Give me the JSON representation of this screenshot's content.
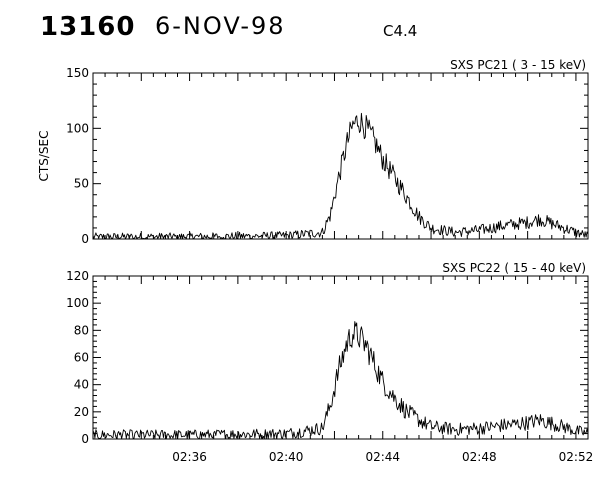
{
  "header": {
    "event_id": "13160",
    "date": "6-NOV-98",
    "goes_class": "C4.4"
  },
  "chart_data": [
    {
      "type": "line",
      "title": "SXS PC21  (  3 - 15 keV)",
      "ylabel": "CTS/SEC",
      "xlabel": "",
      "xlim": [
        "02:32:00",
        "02:52:30"
      ],
      "ylim": [
        0,
        150
      ],
      "yticks": [
        0,
        50,
        100,
        150
      ],
      "grid": false,
      "legend": "none",
      "x_ticks": [],
      "series": [
        {
          "color": "#000000",
          "x": [
            "02:32:00",
            "02:36:00",
            "02:40:00",
            "02:41:30",
            "02:41:50",
            "02:42:10",
            "02:42:30",
            "02:42:45",
            "02:43:00",
            "02:43:20",
            "02:43:40",
            "02:44:00",
            "02:44:30",
            "02:45:00",
            "02:45:30",
            "02:46:00",
            "02:47:00",
            "02:48:00",
            "02:49:00",
            "02:50:00",
            "02:50:30",
            "02:51:30",
            "02:52:00",
            "02:52:30"
          ],
          "values": [
            2,
            2,
            3,
            6,
            22,
            55,
            85,
            102,
            108,
            100,
            88,
            72,
            55,
            38,
            20,
            10,
            6,
            8,
            12,
            15,
            18,
            10,
            6,
            3
          ]
        }
      ]
    },
    {
      "type": "line",
      "title": "SXS PC22  ( 15 - 40 keV)",
      "ylabel": "",
      "xlabel": "",
      "xlim": [
        "02:32:00",
        "02:52:30"
      ],
      "ylim": [
        0,
        120
      ],
      "yticks": [
        0,
        20,
        40,
        60,
        80,
        100,
        120
      ],
      "grid": false,
      "legend": "none",
      "x_ticks": [
        "02:36",
        "02:40",
        "02:44",
        "02:48",
        "02:52"
      ],
      "series": [
        {
          "color": "#000000",
          "x": [
            "02:32:00",
            "02:36:00",
            "02:40:00",
            "02:41:30",
            "02:41:50",
            "02:42:10",
            "02:42:30",
            "02:42:45",
            "02:43:00",
            "02:43:20",
            "02:43:40",
            "02:44:00",
            "02:44:30",
            "02:45:00",
            "02:45:30",
            "02:46:00",
            "02:47:00",
            "02:48:00",
            "02:49:00",
            "02:50:00",
            "02:50:30",
            "02:51:30",
            "02:52:00",
            "02:52:30"
          ],
          "values": [
            3,
            3,
            4,
            8,
            25,
            50,
            70,
            78,
            76,
            68,
            55,
            42,
            30,
            20,
            14,
            9,
            7,
            8,
            10,
            12,
            14,
            9,
            6,
            4
          ]
        }
      ]
    }
  ]
}
